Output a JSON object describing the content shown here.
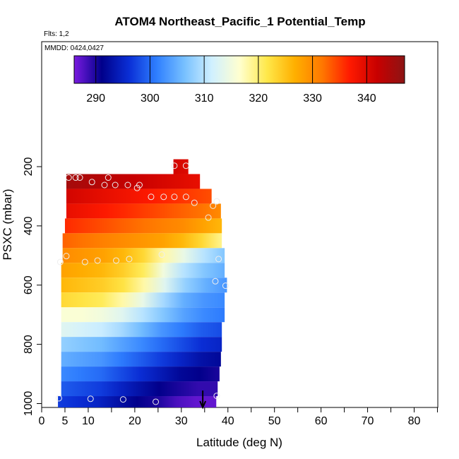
{
  "chart_data": {
    "type": "heatmap",
    "title": "ATOM4 Northeast_Pacific_1 Potential_Temp",
    "subtitle_flights": "Flts: 1,2",
    "subtitle_dates": "MMDD: 0424,0427",
    "xlabel": "Latitude (deg N)",
    "ylabel": "PSXC (mbar)",
    "xlim": [
      0,
      85
    ],
    "ylim": [
      1010,
      0
    ],
    "x_ticks": [
      0,
      5,
      10,
      20,
      30,
      40,
      50,
      60,
      70,
      80
    ],
    "x_minor_ticks": [
      15,
      25,
      35,
      45,
      55,
      65,
      75,
      85
    ],
    "y_ticks": [
      200,
      400,
      600,
      800,
      1000
    ],
    "grid": false,
    "colorbar": {
      "range": [
        286,
        347
      ],
      "ticks": [
        290,
        300,
        310,
        320,
        330,
        340
      ],
      "colors": [
        "#7a1be0",
        "#00008a",
        "#0a2fd6",
        "#2f7fff",
        "#77c0ff",
        "#d0f0ff",
        "#ffffd0",
        "#ffe84a",
        "#ffb000",
        "#ff7800",
        "#ff1a00",
        "#c80000",
        "#8c1414"
      ],
      "placement": "top"
    },
    "bands": [
      {
        "p": 200,
        "lat_min": 28.3,
        "lat_max": 31.5,
        "theta": [
          341,
          340
        ]
      },
      {
        "p": 250,
        "lat_min": 5.3,
        "lat_max": 34.0,
        "theta": [
          345,
          344,
          343,
          342,
          341,
          340,
          339
        ]
      },
      {
        "p": 300,
        "lat_min": 5.3,
        "lat_max": 36.5,
        "theta": [
          341,
          340,
          339,
          338,
          337,
          336,
          335,
          334
        ]
      },
      {
        "p": 350,
        "lat_min": 5.3,
        "lat_max": 38.5,
        "theta": [
          339,
          338,
          337,
          336,
          335,
          334,
          333,
          332,
          330
        ]
      },
      {
        "p": 400,
        "lat_min": 5.0,
        "lat_max": 38.7,
        "theta": [
          336,
          335,
          334,
          333,
          332,
          331,
          330,
          328,
          326
        ]
      },
      {
        "p": 450,
        "lat_min": 4.5,
        "lat_max": 38.7,
        "theta": [
          333,
          332,
          331,
          330,
          329,
          328,
          326,
          323,
          319
        ]
      },
      {
        "p": 500,
        "lat_min": 4.5,
        "lat_max": 39.3,
        "theta": [
          330,
          329,
          328,
          326,
          323,
          318,
          314,
          310,
          307
        ]
      },
      {
        "p": 550,
        "lat_min": 4.2,
        "lat_max": 39.3,
        "theta": [
          328,
          327,
          326,
          324,
          321,
          315,
          310,
          307,
          305
        ]
      },
      {
        "p": 600,
        "lat_min": 4.2,
        "lat_max": 39.8,
        "theta": [
          326,
          325,
          324,
          322,
          318,
          313,
          308,
          305,
          303
        ]
      },
      {
        "p": 650,
        "lat_min": 4.2,
        "lat_max": 39.3,
        "theta": [
          323,
          322,
          321,
          318,
          314,
          309,
          305,
          303,
          302
        ]
      },
      {
        "p": 700,
        "lat_min": 4.2,
        "lat_max": 39.3,
        "theta": [
          316,
          316,
          315,
          313,
          310,
          307,
          304,
          302,
          301
        ]
      },
      {
        "p": 750,
        "lat_min": 4.2,
        "lat_max": 38.7,
        "theta": [
          313,
          312,
          311,
          309,
          306,
          303,
          301,
          299,
          298
        ]
      },
      {
        "p": 800,
        "lat_min": 4.2,
        "lat_max": 38.7,
        "theta": [
          308,
          307,
          306,
          304,
          302,
          300,
          298,
          296,
          295
        ]
      },
      {
        "p": 850,
        "lat_min": 4.2,
        "lat_max": 38.5,
        "theta": [
          305,
          304,
          303,
          301,
          299,
          297,
          295,
          293,
          292
        ]
      },
      {
        "p": 900,
        "lat_min": 4.2,
        "lat_max": 38.2,
        "theta": [
          302,
          301,
          300,
          298,
          296,
          294,
          292,
          291,
          290
        ]
      },
      {
        "p": 950,
        "lat_min": 4.2,
        "lat_max": 37.8,
        "theta": [
          299,
          298,
          297,
          295,
          293,
          291,
          290,
          289,
          289
        ]
      },
      {
        "p": 1000,
        "lat_min": 3.5,
        "lat_max": 37.5,
        "theta": [
          297,
          296,
          295,
          293,
          291,
          290,
          288,
          287,
          287
        ]
      }
    ],
    "points": [
      {
        "lat": 28.5,
        "p": 197
      },
      {
        "lat": 31.0,
        "p": 197
      },
      {
        "lat": 5.8,
        "p": 237
      },
      {
        "lat": 7.3,
        "p": 237
      },
      {
        "lat": 8.2,
        "p": 237
      },
      {
        "lat": 14.3,
        "p": 237
      },
      {
        "lat": 10.8,
        "p": 252
      },
      {
        "lat": 13.5,
        "p": 262
      },
      {
        "lat": 15.8,
        "p": 262
      },
      {
        "lat": 18.5,
        "p": 262
      },
      {
        "lat": 21.0,
        "p": 262
      },
      {
        "lat": 20.5,
        "p": 272
      },
      {
        "lat": 23.5,
        "p": 302
      },
      {
        "lat": 26.2,
        "p": 302
      },
      {
        "lat": 28.5,
        "p": 302
      },
      {
        "lat": 31.0,
        "p": 302
      },
      {
        "lat": 32.8,
        "p": 322
      },
      {
        "lat": 36.8,
        "p": 332
      },
      {
        "lat": 37.6,
        "p": 317
      },
      {
        "lat": 35.8,
        "p": 372
      },
      {
        "lat": 5.3,
        "p": 502
      },
      {
        "lat": 25.8,
        "p": 497
      },
      {
        "lat": 4.0,
        "p": 522
      },
      {
        "lat": 9.3,
        "p": 522
      },
      {
        "lat": 12.0,
        "p": 517
      },
      {
        "lat": 16.0,
        "p": 517
      },
      {
        "lat": 18.8,
        "p": 512
      },
      {
        "lat": 38.0,
        "p": 512
      },
      {
        "lat": 37.3,
        "p": 587
      },
      {
        "lat": 39.5,
        "p": 602
      },
      {
        "lat": 3.7,
        "p": 982
      },
      {
        "lat": 10.5,
        "p": 984
      },
      {
        "lat": 17.5,
        "p": 986
      },
      {
        "lat": 24.5,
        "p": 994
      },
      {
        "lat": 37.6,
        "p": 974
      }
    ],
    "marker": {
      "lat": 34.6,
      "p": 1012
    }
  }
}
